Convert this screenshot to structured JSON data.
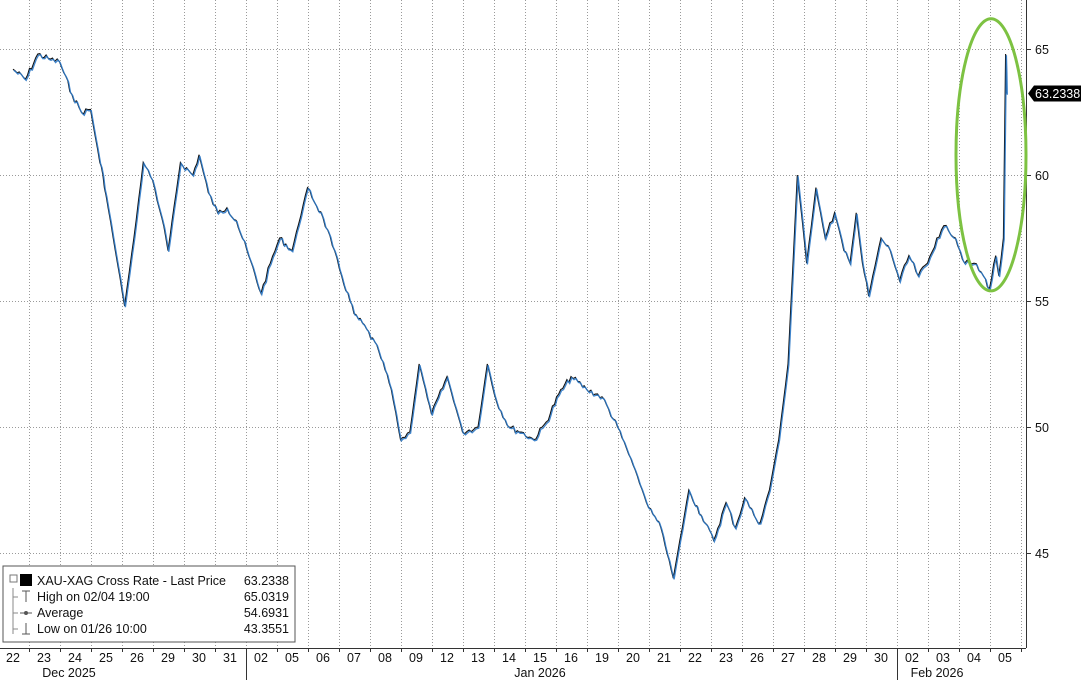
{
  "chart_data": {
    "type": "line",
    "title": "",
    "xlabel": "",
    "ylabel": "",
    "ylim": [
      41,
      67
    ],
    "yticks": [
      45,
      50,
      55,
      60,
      65
    ],
    "grid": true,
    "legend_placement": "bottom-left",
    "colors": {
      "price_line": "#111111",
      "price_overlay": "#2b78c6",
      "highlight_ellipse": "#7dc242",
      "price_tag_bg": "#000000"
    },
    "day_labels": [
      "22",
      "23",
      "24",
      "25",
      "26",
      "29",
      "30",
      "31",
      "02",
      "05",
      "06",
      "07",
      "08",
      "09",
      "12",
      "13",
      "14",
      "15",
      "16",
      "19",
      "20",
      "21",
      "22",
      "23",
      "26",
      "27",
      "28",
      "29",
      "30",
      "02",
      "03",
      "04",
      "05"
    ],
    "month_labels": [
      "Dec 2025",
      "Jan 2026",
      "Feb 2026"
    ],
    "month_label_day_index": [
      2,
      17,
      30
    ],
    "month_separator_after_index": [
      7,
      28
    ],
    "series": [
      {
        "name": "XAU-XAG Cross Rate",
        "x_day_index": [
          0.0,
          0.4,
          0.8,
          1.2,
          1.5,
          1.9,
          2.2,
          2.5,
          2.8,
          2.9,
          3.0,
          3.3,
          3.6,
          3.9,
          4.2,
          4.5,
          4.8,
          5.0,
          5.4,
          5.8,
          6.0,
          6.3,
          6.6,
          6.9,
          7.2,
          7.6,
          8.0,
          8.3,
          8.6,
          9.0,
          9.5,
          10.0,
          10.3,
          10.6,
          11.0,
          11.4,
          11.8,
          12.2,
          12.5,
          12.8,
          13.1,
          13.5,
          14.0,
          14.5,
          15.0,
          15.3,
          15.6,
          16.0,
          16.4,
          16.8,
          17.2,
          17.6,
          18.0,
          18.5,
          19.0,
          19.5,
          20.0,
          20.5,
          20.9,
          21.3,
          21.8,
          22.2,
          22.6,
          23.0,
          23.3,
          23.6,
          23.9,
          24.1,
          24.4,
          24.7,
          25.0,
          25.3,
          25.6,
          25.9,
          26.2,
          26.5,
          26.8,
          27.0,
          27.2,
          27.4,
          27.6,
          28.0,
          28.3,
          28.6,
          28.9,
          29.2,
          29.5,
          29.8,
          30.1,
          30.4,
          30.7,
          31.0,
          31.3,
          31.5,
          31.7,
          31.8,
          31.95,
          32.0,
          32.02,
          32.05
        ],
        "values": [
          64.2,
          63.8,
          64.8,
          64.6,
          64.5,
          63.2,
          62.5,
          62.6,
          60.5,
          60.0,
          59.2,
          57.0,
          54.8,
          57.5,
          60.5,
          59.8,
          58.3,
          57.0,
          60.5,
          60.0,
          60.8,
          59.3,
          58.5,
          58.7,
          58.2,
          56.8,
          55.3,
          56.5,
          57.5,
          57.0,
          59.5,
          58.3,
          57.2,
          56.0,
          54.5,
          53.9,
          53.0,
          51.5,
          49.5,
          49.8,
          52.5,
          50.5,
          52.0,
          49.8,
          50.0,
          52.5,
          51.0,
          50.0,
          49.8,
          49.5,
          50.2,
          51.3,
          52.0,
          51.5,
          51.2,
          50.0,
          48.5,
          46.8,
          46.0,
          44.0,
          47.5,
          46.5,
          45.5,
          47.0,
          46.0,
          47.2,
          46.5,
          46.2,
          47.5,
          49.5,
          52.5,
          60.0,
          56.5,
          59.5,
          57.5,
          58.5,
          57.0,
          56.5,
          58.5,
          56.5,
          55.2,
          57.5,
          57.0,
          55.8,
          56.8,
          56.0,
          56.5,
          57.5,
          58.0,
          57.5,
          56.5,
          56.5,
          56.0,
          55.5,
          56.8,
          56.0,
          57.5,
          62.8,
          64.8,
          63.2338
        ]
      }
    ],
    "highlight_ellipse": {
      "x_day_index": 32.0,
      "y_center": 60.8,
      "y_top": 66.1,
      "y_bottom": 55.3
    },
    "last_price": "63.2338",
    "legend": {
      "title": "XAU-XAG Cross Rate - Last Price",
      "title_value": "63.2338",
      "rows": [
        {
          "label": "High on 02/04 19:00",
          "value": "65.0319"
        },
        {
          "label": "Average",
          "value": "54.6931"
        },
        {
          "label": "Low on 01/26 10:00",
          "value": "43.3551"
        }
      ]
    }
  }
}
